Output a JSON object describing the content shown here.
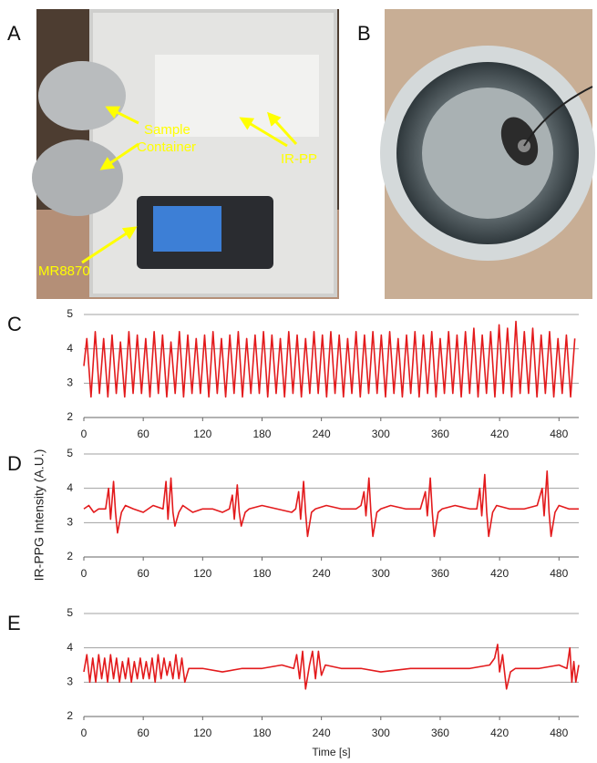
{
  "figure": {
    "panels": [
      {
        "label": "A",
        "annotations": [
          "Sample",
          "Container",
          "IR-PP",
          "MR8870"
        ]
      },
      {
        "label": "B"
      }
    ]
  },
  "chart_data": [
    {
      "type": "line",
      "panel": "C",
      "color": "#e31a1c",
      "xlim": [
        0,
        500
      ],
      "xticks": [
        0,
        60,
        120,
        180,
        240,
        300,
        360,
        420,
        480
      ],
      "ylim": [
        2,
        5
      ],
      "yticks": [
        2,
        3,
        4,
        5
      ],
      "grid": true,
      "x": [
        0,
        3,
        7.25,
        11.5,
        15.75,
        20,
        24.25,
        28.5,
        32.75,
        37,
        41.25,
        45.5,
        49.75,
        54,
        58.25,
        62.5,
        66.75,
        71,
        75.25,
        79.5,
        83.75,
        88,
        92.25,
        96.5,
        100.75,
        105,
        109.25,
        113.5,
        117.75,
        122,
        126.25,
        130.5,
        134.75,
        139,
        143.25,
        147.5,
        151.75,
        156,
        160.25,
        164.5,
        168.75,
        173,
        177.25,
        181.5,
        185.75,
        190,
        194.25,
        198.5,
        202.75,
        207,
        211.25,
        215.5,
        219.75,
        224,
        228.25,
        232.5,
        236.75,
        241,
        245.25,
        249.5,
        253.75,
        258,
        262.25,
        266.5,
        270.75,
        275,
        279.25,
        283.5,
        287.75,
        292,
        296.25,
        300.5,
        304.75,
        309,
        313.25,
        317.5,
        321.75,
        326,
        330.25,
        334.5,
        338.75,
        343,
        347.25,
        351.5,
        355.75,
        360,
        364.25,
        368.5,
        372.75,
        377,
        381.25,
        385.5,
        389.75,
        394,
        398.25,
        402.5,
        406.75,
        411,
        415.25,
        419.5,
        423.75,
        428,
        432.25,
        436.5,
        440.75,
        445,
        449.25,
        453.5,
        457.75,
        462,
        466.25,
        470.5,
        474.75,
        479,
        483.25,
        487.5,
        491.75,
        496
      ],
      "values": [
        3.5,
        4.3,
        2.6,
        4.5,
        2.7,
        4.3,
        2.6,
        4.4,
        2.7,
        4.2,
        2.6,
        4.5,
        2.7,
        4.4,
        2.7,
        4.3,
        2.6,
        4.5,
        2.7,
        4.4,
        2.6,
        4.2,
        2.7,
        4.5,
        2.6,
        4.4,
        2.7,
        4.3,
        2.7,
        4.4,
        2.6,
        4.5,
        2.7,
        4.3,
        2.6,
        4.4,
        2.7,
        4.5,
        2.6,
        4.3,
        2.7,
        4.4,
        2.7,
        4.5,
        2.6,
        4.4,
        2.7,
        4.3,
        2.6,
        4.5,
        2.7,
        4.4,
        2.6,
        4.3,
        2.7,
        4.5,
        2.7,
        4.4,
        2.6,
        4.5,
        2.7,
        4.4,
        2.6,
        4.3,
        2.7,
        4.5,
        2.6,
        4.4,
        2.7,
        4.5,
        2.7,
        4.4,
        2.6,
        4.5,
        2.7,
        4.3,
        2.6,
        4.4,
        2.7,
        4.5,
        2.6,
        4.4,
        2.7,
        4.5,
        2.6,
        4.3,
        2.7,
        4.5,
        2.7,
        4.4,
        2.6,
        4.5,
        2.7,
        4.6,
        2.6,
        4.4,
        2.7,
        4.5,
        2.6,
        4.7,
        2.7,
        4.6,
        2.6,
        4.8,
        2.7,
        4.5,
        2.7,
        4.6,
        2.6,
        4.4,
        2.7,
        4.5,
        2.6,
        4.3,
        2.7,
        4.4,
        2.6,
        4.3
      ]
    },
    {
      "type": "line",
      "panel": "D",
      "ylabel": "IR-PPG Intensity  (A.U.)",
      "color": "#e31a1c",
      "xlim": [
        0,
        500
      ],
      "xticks": [
        0,
        60,
        120,
        180,
        240,
        300,
        360,
        420,
        480
      ],
      "ylim": [
        2,
        5
      ],
      "yticks": [
        2,
        3,
        4,
        5
      ],
      "grid": true,
      "x": [
        0,
        5,
        10,
        15,
        22,
        25,
        27,
        30,
        32,
        34,
        38,
        42,
        50,
        60,
        70,
        80,
        83,
        85,
        88,
        90,
        92,
        96,
        100,
        110,
        120,
        130,
        140,
        147,
        150,
        152,
        155,
        157,
        159,
        163,
        167,
        180,
        195,
        210,
        214,
        217,
        219,
        222,
        224,
        226,
        230,
        234,
        245,
        260,
        275,
        280,
        283,
        285,
        288,
        290,
        292,
        296,
        300,
        310,
        325,
        340,
        345,
        347,
        350,
        352,
        354,
        358,
        362,
        375,
        390,
        397,
        400,
        402,
        405,
        407,
        409,
        413,
        417,
        430,
        445,
        458,
        463,
        465,
        468,
        470,
        472,
        476,
        480,
        490,
        500
      ],
      "values": [
        3.4,
        3.5,
        3.3,
        3.4,
        3.4,
        4.0,
        3.1,
        4.2,
        3.3,
        2.7,
        3.3,
        3.5,
        3.4,
        3.3,
        3.5,
        3.4,
        4.2,
        3.1,
        4.3,
        3.3,
        2.9,
        3.3,
        3.5,
        3.3,
        3.4,
        3.4,
        3.3,
        3.4,
        3.8,
        3.1,
        4.1,
        3.3,
        2.9,
        3.3,
        3.4,
        3.5,
        3.4,
        3.3,
        3.4,
        3.9,
        3.1,
        4.2,
        3.3,
        2.6,
        3.3,
        3.4,
        3.5,
        3.4,
        3.4,
        3.5,
        3.9,
        3.2,
        4.3,
        3.3,
        2.6,
        3.3,
        3.4,
        3.5,
        3.4,
        3.4,
        3.9,
        3.2,
        4.3,
        3.3,
        2.6,
        3.3,
        3.4,
        3.5,
        3.4,
        3.4,
        4.0,
        3.2,
        4.4,
        3.3,
        2.6,
        3.3,
        3.5,
        3.4,
        3.4,
        3.5,
        4.0,
        3.2,
        4.5,
        3.3,
        2.6,
        3.3,
        3.5,
        3.4,
        3.4
      ]
    },
    {
      "type": "line",
      "panel": "E",
      "xlabel": "Time [s]",
      "color": "#e31a1c",
      "xlim": [
        0,
        500
      ],
      "xticks": [
        0,
        60,
        120,
        180,
        240,
        300,
        360,
        420,
        480
      ],
      "ylim": [
        2,
        5
      ],
      "yticks": [
        2,
        3,
        4,
        5
      ],
      "grid": true,
      "x": [
        0,
        3,
        6,
        9,
        12,
        15,
        18,
        21,
        24,
        27,
        30,
        33,
        36,
        39,
        42,
        45,
        48,
        51,
        54,
        57,
        60,
        63,
        66,
        69,
        72,
        75,
        78,
        81,
        84,
        87,
        90,
        93,
        96,
        99,
        102,
        106,
        120,
        140,
        160,
        180,
        200,
        212,
        215,
        218,
        221,
        224,
        228,
        231,
        234,
        237,
        240,
        244,
        260,
        280,
        300,
        330,
        360,
        390,
        410,
        415,
        418,
        420,
        423,
        427,
        431,
        436,
        460,
        480,
        488,
        491,
        493,
        495,
        497,
        500
      ],
      "values": [
        3.3,
        3.8,
        3.0,
        3.7,
        3.0,
        3.8,
        3.1,
        3.7,
        3.0,
        3.8,
        3.1,
        3.7,
        3.0,
        3.6,
        3.1,
        3.7,
        3.0,
        3.6,
        3.1,
        3.7,
        3.1,
        3.6,
        3.1,
        3.7,
        3.0,
        3.8,
        3.1,
        3.7,
        3.2,
        3.6,
        3.1,
        3.8,
        3.1,
        3.7,
        3.0,
        3.4,
        3.4,
        3.3,
        3.4,
        3.4,
        3.5,
        3.4,
        3.8,
        3.1,
        3.9,
        2.8,
        3.5,
        3.9,
        3.1,
        3.9,
        3.2,
        3.5,
        3.4,
        3.4,
        3.3,
        3.4,
        3.4,
        3.4,
        3.5,
        3.7,
        4.1,
        3.3,
        3.8,
        2.8,
        3.3,
        3.4,
        3.4,
        3.5,
        3.4,
        4.0,
        3.0,
        3.6,
        3.0,
        3.5
      ]
    }
  ]
}
